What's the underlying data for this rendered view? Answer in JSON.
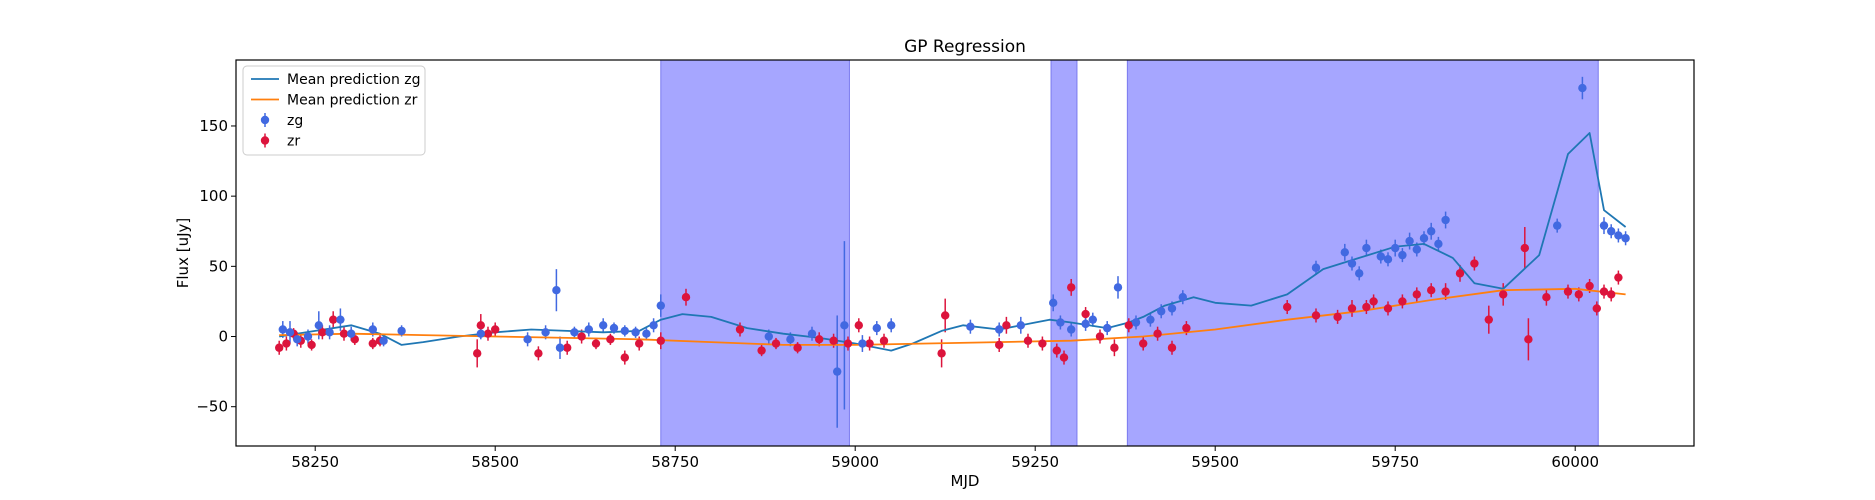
{
  "chart_data": {
    "type": "scatter",
    "title": "GP Regression",
    "xlabel": "MJD",
    "ylabel": "Flux [uJy]",
    "xlim": [
      58140,
      60165
    ],
    "ylim": [
      -78,
      197
    ],
    "xticks": [
      58250,
      58500,
      58750,
      59000,
      59250,
      59500,
      59750,
      60000
    ],
    "yticks": [
      -50,
      0,
      50,
      100,
      150
    ],
    "grid": false,
    "legend_position": "top-left",
    "shaded_regions": [
      [
        58730,
        58992
      ],
      [
        59272,
        59308
      ],
      [
        59378,
        60032
      ]
    ],
    "colors": {
      "band": "#a6a6ff",
      "zg_line": "#1f77b4",
      "zr_line": "#ff7f0e",
      "zg_points": "#4169e1",
      "zr_points": "#dc143c"
    },
    "series": [
      {
        "name": "Mean prediction zg",
        "kind": "line",
        "color": "#1f77b4",
        "x": [
          58200,
          58250,
          58300,
          58340,
          58370,
          58400,
          58450,
          58500,
          58550,
          58600,
          58650,
          58700,
          58730,
          58760,
          58800,
          58850,
          58900,
          58950,
          59000,
          59050,
          59080,
          59120,
          59150,
          59200,
          59250,
          59270,
          59300,
          59350,
          59380,
          59400,
          59430,
          59470,
          59500,
          59550,
          59600,
          59650,
          59700,
          59750,
          59790,
          59830,
          59860,
          59900,
          59950,
          59990,
          60020,
          60040,
          60070
        ],
        "y": [
          0,
          4,
          8,
          2,
          -6,
          -4,
          0,
          3,
          5,
          4,
          3,
          4,
          12,
          16,
          14,
          6,
          2,
          -1,
          -5,
          -10,
          -5,
          4,
          8,
          5,
          10,
          12,
          10,
          6,
          10,
          14,
          22,
          28,
          24,
          22,
          30,
          48,
          56,
          64,
          66,
          56,
          38,
          34,
          58,
          130,
          145,
          90,
          78
        ]
      },
      {
        "name": "Mean prediction zr",
        "kind": "line",
        "color": "#ff7f0e",
        "x": [
          58200,
          58300,
          58400,
          58500,
          58600,
          58700,
          58800,
          58900,
          59000,
          59100,
          59200,
          59300,
          59400,
          59500,
          59600,
          59700,
          59800,
          59900,
          60000,
          60070
        ],
        "y": [
          1,
          2,
          1,
          0,
          -1,
          -2,
          -4,
          -6,
          -6,
          -5,
          -4,
          -3,
          0,
          5,
          12,
          18,
          26,
          33,
          34,
          30
        ]
      },
      {
        "name": "zg",
        "kind": "errorbar",
        "color": "#4169e1",
        "x": [
          58205,
          58215,
          58225,
          58240,
          58255,
          58270,
          58285,
          58300,
          58330,
          58345,
          58370,
          58480,
          58545,
          58570,
          58585,
          58590,
          58610,
          58630,
          58650,
          58665,
          58680,
          58695,
          58710,
          58720,
          58730,
          58880,
          58910,
          58940,
          58975,
          58985,
          59010,
          59030,
          59050,
          59160,
          59200,
          59230,
          59275,
          59285,
          59300,
          59320,
          59330,
          59350,
          59365,
          59390,
          59410,
          59425,
          59440,
          59455,
          59640,
          59680,
          59690,
          59700,
          59710,
          59730,
          59740,
          59750,
          59760,
          59770,
          59780,
          59790,
          59800,
          59810,
          59820,
          59975,
          60010,
          60040,
          60050,
          60060,
          60070
        ],
        "y": [
          5,
          3,
          -2,
          0,
          8,
          3,
          12,
          2,
          5,
          -3,
          4,
          2,
          -2,
          3,
          33,
          -8,
          3,
          5,
          8,
          6,
          4,
          3,
          2,
          8,
          22,
          0,
          -2,
          2,
          -25,
          8,
          -5,
          6,
          8,
          7,
          5,
          8,
          24,
          10,
          5,
          9,
          12,
          6,
          35,
          10,
          12,
          18,
          20,
          28,
          49,
          60,
          52,
          45,
          63,
          57,
          55,
          63,
          58,
          68,
          62,
          70,
          75,
          66,
          83,
          79,
          177,
          79,
          75,
          72,
          70
        ],
        "err": [
          6,
          8,
          5,
          5,
          10,
          5,
          8,
          5,
          5,
          4,
          4,
          4,
          5,
          5,
          15,
          8,
          4,
          5,
          5,
          4,
          4,
          4,
          4,
          5,
          8,
          5,
          5,
          5,
          40,
          60,
          6,
          5,
          5,
          5,
          5,
          6,
          6,
          5,
          5,
          5,
          5,
          5,
          8,
          5,
          5,
          5,
          5,
          5,
          5,
          6,
          5,
          5,
          6,
          5,
          5,
          6,
          5,
          6,
          5,
          5,
          6,
          5,
          6,
          5,
          8,
          6,
          5,
          5,
          5
        ]
      },
      {
        "name": "zr",
        "kind": "errorbar",
        "color": "#dc143c",
        "x": [
          58200,
          58210,
          58220,
          58230,
          58245,
          58260,
          58275,
          58290,
          58305,
          58330,
          58340,
          58475,
          58480,
          58490,
          58500,
          58560,
          58600,
          58620,
          58640,
          58660,
          58680,
          58700,
          58730,
          58765,
          58840,
          58870,
          58890,
          58920,
          58950,
          58970,
          58990,
          59005,
          59020,
          59040,
          59120,
          59125,
          59200,
          59210,
          59240,
          59260,
          59280,
          59290,
          59300,
          59320,
          59340,
          59360,
          59380,
          59400,
          59420,
          59440,
          59460,
          59600,
          59640,
          59670,
          59690,
          59710,
          59720,
          59740,
          59760,
          59780,
          59800,
          59820,
          59840,
          59860,
          59880,
          59900,
          59930,
          59935,
          59960,
          59990,
          60005,
          60020,
          60030,
          60040,
          60050,
          60060
        ],
        "y": [
          -8,
          -5,
          2,
          -3,
          -6,
          3,
          12,
          2,
          -2,
          -5,
          -3,
          -12,
          8,
          2,
          5,
          -12,
          -8,
          0,
          -5,
          -2,
          -15,
          -5,
          -3,
          28,
          5,
          -10,
          -5,
          -8,
          -2,
          -3,
          -5,
          8,
          -5,
          -3,
          -12,
          15,
          -6,
          8,
          -3,
          -5,
          -10,
          -15,
          35,
          16,
          0,
          -8,
          8,
          -5,
          2,
          -8,
          6,
          21,
          15,
          14,
          20,
          21,
          25,
          20,
          25,
          30,
          33,
          32,
          45,
          52,
          12,
          30,
          63,
          -2,
          28,
          32,
          30,
          36,
          20,
          32,
          30,
          42
        ],
        "err": [
          5,
          5,
          4,
          5,
          4,
          5,
          6,
          5,
          4,
          4,
          4,
          10,
          8,
          5,
          5,
          5,
          5,
          5,
          4,
          4,
          5,
          5,
          6,
          6,
          5,
          4,
          4,
          4,
          5,
          5,
          5,
          5,
          5,
          5,
          10,
          12,
          5,
          6,
          5,
          5,
          5,
          5,
          6,
          5,
          5,
          6,
          5,
          5,
          5,
          5,
          5,
          5,
          5,
          5,
          6,
          5,
          5,
          5,
          5,
          5,
          5,
          6,
          6,
          5,
          10,
          8,
          15,
          15,
          6,
          5,
          5,
          5,
          5,
          5,
          5,
          5
        ]
      }
    ]
  }
}
